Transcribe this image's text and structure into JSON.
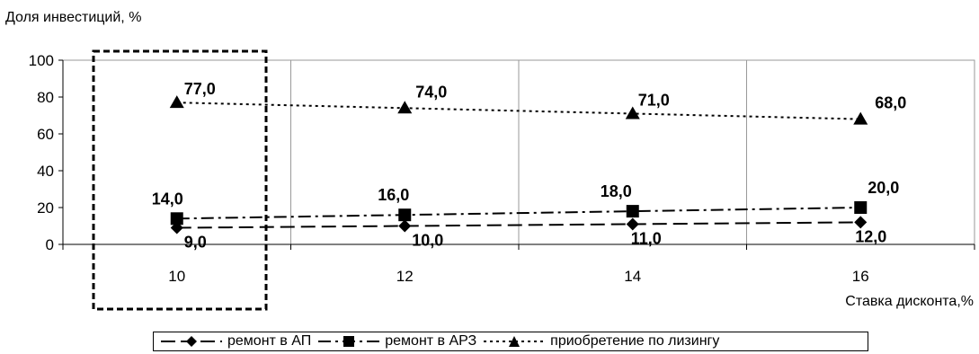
{
  "chart_data": {
    "type": "line",
    "ylabel": "Доля инвестиций, %",
    "xlabel": "Ставка дисконта,%",
    "categories": [
      "10",
      "12",
      "14",
      "16"
    ],
    "ylim": [
      0,
      100
    ],
    "yticks": [
      "0",
      "20",
      "40",
      "60",
      "80",
      "100"
    ],
    "grid": "vertical",
    "legend_position": "bottom",
    "highlight_category": "10",
    "series": [
      {
        "name": "ремонт в АП",
        "marker": "diamond",
        "dash": "long-dash",
        "values": [
          9,
          10,
          11,
          12
        ],
        "labels": [
          "9,0",
          "10,0",
          "11,0",
          "12,0"
        ]
      },
      {
        "name": "ремонт в АРЗ",
        "marker": "square",
        "dash": "dash-dot",
        "values": [
          14,
          16,
          18,
          20
        ],
        "labels": [
          "14,0",
          "16,0",
          "18,0",
          "20,0"
        ]
      },
      {
        "name": "приобретение по лизингу",
        "marker": "triangle",
        "dash": "dotted",
        "values": [
          77,
          74,
          71,
          68
        ],
        "labels": [
          "77,0",
          "74,0",
          "71,0",
          "68,0"
        ]
      }
    ]
  }
}
